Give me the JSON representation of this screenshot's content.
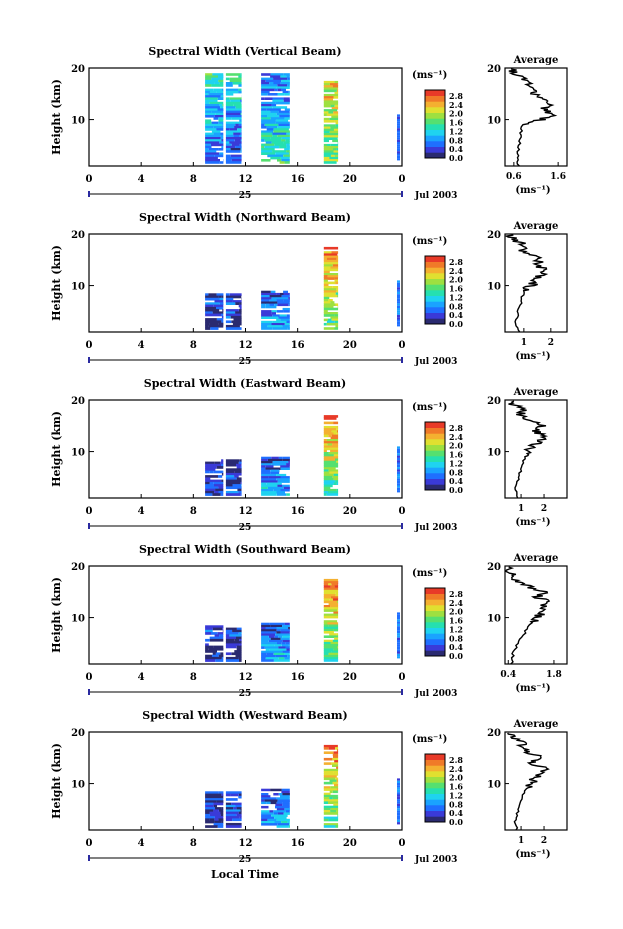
{
  "figure": {
    "xlabel": "Local Time",
    "ylabel": "Height (km)",
    "x_ticks": [
      "0",
      "4",
      "8",
      "12",
      "16",
      "20",
      "0"
    ],
    "day_label": "25",
    "date_label": "Jul 2003",
    "y_ticks": [
      "20",
      "10"
    ],
    "colorbar_unit": "(ms⁻¹)",
    "colorbar_ticks": [
      "2.8",
      "2.4",
      "2.0",
      "1.6",
      "1.2",
      "0.8",
      "0.4",
      "0.0"
    ],
    "average_title": "Average",
    "average_xlabel": "(ms⁻¹)",
    "colors": {
      "colormap": [
        "#2a2a70",
        "#3a3ad8",
        "#1f6fff",
        "#1aa3ff",
        "#1fd3f0",
        "#25e0b0",
        "#55e070",
        "#9ee040",
        "#e0e030",
        "#f4b030",
        "#f07a28",
        "#e83a28"
      ]
    }
  },
  "chart_data": [
    {
      "type": "heatmap",
      "title": "Spectral Width (Vertical Beam)",
      "xlabel": "Local Time",
      "ylabel": "Height (km)",
      "xlim": [
        0,
        24
      ],
      "ylim": [
        1,
        20
      ],
      "colorbar_range": [
        0.0,
        3.0
      ],
      "data_blocks": [
        {
          "x": [
            8.9,
            10.3
          ],
          "y": [
            1.5,
            19.0
          ],
          "value_low_alt": 0.4,
          "value_high_alt": 1.4
        },
        {
          "x": [
            10.5,
            11.7
          ],
          "y": [
            1.5,
            19.0
          ],
          "value_low_alt": 0.3,
          "value_high_alt": 1.4
        },
        {
          "x": [
            13.2,
            15.4
          ],
          "y": [
            1.5,
            19.0
          ],
          "value_low_alt": 1.4,
          "value_high_alt": 0.6
        },
        {
          "x": [
            18.0,
            19.1
          ],
          "y": [
            1.5,
            17.5
          ],
          "value_low_alt": 1.6,
          "value_high_alt": 2.2
        }
      ],
      "average_profile": {
        "x_ticks": [
          "0.6",
          "1.6"
        ],
        "xlim": [
          0.4,
          1.8
        ],
        "height": [
          1,
          3,
          5,
          7,
          9,
          10,
          11,
          12,
          13,
          14,
          15,
          16,
          17,
          18,
          19,
          20
        ],
        "value": [
          0.7,
          0.68,
          0.72,
          0.75,
          0.8,
          1.2,
          1.5,
          1.3,
          1.4,
          1.2,
          1.1,
          1.0,
          0.9,
          0.8,
          0.6,
          0.5
        ]
      }
    },
    {
      "type": "heatmap",
      "title": "Spectral Width (Northward Beam)",
      "xlabel": "Local Time",
      "ylabel": "Height (km)",
      "xlim": [
        0,
        24
      ],
      "ylim": [
        1,
        20
      ],
      "colorbar_range": [
        0.0,
        3.0
      ],
      "data_blocks": [
        {
          "x": [
            8.9,
            10.3
          ],
          "y": [
            1.5,
            8.5
          ],
          "value_low_alt": 0.3,
          "value_high_alt": 0.4
        },
        {
          "x": [
            10.5,
            11.7
          ],
          "y": [
            1.5,
            8.5
          ],
          "value_low_alt": 0.3,
          "value_high_alt": 0.4
        },
        {
          "x": [
            13.2,
            15.4
          ],
          "y": [
            1.5,
            9.0
          ],
          "value_low_alt": 1.0,
          "value_high_alt": 0.4
        },
        {
          "x": [
            18.0,
            19.1
          ],
          "y": [
            1.5,
            17.5
          ],
          "value_low_alt": 1.4,
          "value_high_alt": 2.6
        }
      ],
      "average_profile": {
        "x_ticks": [
          "1",
          "2"
        ],
        "xlim": [
          0.3,
          2.6
        ],
        "height": [
          1,
          3,
          5,
          7,
          9,
          10,
          11,
          12,
          13,
          14,
          15,
          16,
          17,
          18,
          19,
          20
        ],
        "value": [
          0.8,
          0.7,
          0.8,
          0.9,
          1.0,
          1.3,
          1.4,
          1.6,
          1.9,
          1.4,
          1.6,
          1.2,
          0.9,
          1.0,
          0.6,
          0.5
        ]
      }
    },
    {
      "type": "heatmap",
      "title": "Spectral Width (Eastward Beam)",
      "xlabel": "Local Time",
      "ylabel": "Height (km)",
      "xlim": [
        0,
        24
      ],
      "ylim": [
        1,
        20
      ],
      "colorbar_range": [
        0.0,
        3.0
      ],
      "data_blocks": [
        {
          "x": [
            8.9,
            10.3
          ],
          "y": [
            1.5,
            8.5
          ],
          "value_low_alt": 0.3,
          "value_high_alt": 0.4
        },
        {
          "x": [
            10.5,
            11.7
          ],
          "y": [
            1.5,
            8.5
          ],
          "value_low_alt": 0.3,
          "value_high_alt": 0.4
        },
        {
          "x": [
            13.2,
            15.4
          ],
          "y": [
            1.5,
            9.0
          ],
          "value_low_alt": 1.0,
          "value_high_alt": 0.4
        },
        {
          "x": [
            18.0,
            19.1
          ],
          "y": [
            1.5,
            17.5
          ],
          "value_low_alt": 1.4,
          "value_high_alt": 2.6
        }
      ],
      "average_profile": {
        "x_ticks": [
          "1",
          "2"
        ],
        "xlim": [
          0.3,
          3.0
        ],
        "height": [
          1,
          3,
          5,
          7,
          9,
          10,
          11,
          12,
          13,
          14,
          15,
          16,
          17,
          18,
          19,
          20
        ],
        "value": [
          0.8,
          0.75,
          0.9,
          1.0,
          1.2,
          1.3,
          1.5,
          1.8,
          2.2,
          1.5,
          2.0,
          1.4,
          1.0,
          1.1,
          0.7,
          0.6
        ]
      }
    },
    {
      "type": "heatmap",
      "title": "Spectral Width (Southward Beam)",
      "xlabel": "Local Time",
      "ylabel": "Height (km)",
      "xlim": [
        0,
        24
      ],
      "ylim": [
        1,
        20
      ],
      "colorbar_range": [
        0.0,
        3.0
      ],
      "data_blocks": [
        {
          "x": [
            8.9,
            10.3
          ],
          "y": [
            1.5,
            8.5
          ],
          "value_low_alt": 0.3,
          "value_high_alt": 0.4
        },
        {
          "x": [
            10.5,
            11.7
          ],
          "y": [
            1.5,
            8.5
          ],
          "value_low_alt": 0.3,
          "value_high_alt": 0.4
        },
        {
          "x": [
            13.2,
            15.4
          ],
          "y": [
            1.5,
            9.0
          ],
          "value_low_alt": 1.0,
          "value_high_alt": 0.4
        },
        {
          "x": [
            18.0,
            19.1
          ],
          "y": [
            1.5,
            17.5
          ],
          "value_low_alt": 1.4,
          "value_high_alt": 2.6
        }
      ],
      "average_profile": {
        "x_ticks": [
          "0.4",
          "1.8"
        ],
        "xlim": [
          0.3,
          2.2
        ],
        "height": [
          1,
          3,
          5,
          7,
          9,
          10,
          11,
          12,
          13,
          14,
          15,
          16,
          17,
          18,
          19,
          20
        ],
        "value": [
          0.5,
          0.55,
          0.7,
          0.9,
          1.1,
          1.3,
          1.4,
          1.5,
          1.6,
          1.3,
          1.5,
          1.0,
          0.7,
          0.6,
          0.4,
          0.35
        ]
      }
    },
    {
      "type": "heatmap",
      "title": "Spectral Width (Westward Beam)",
      "xlabel": "Local Time",
      "ylabel": "Height (km)",
      "xlim": [
        0,
        24
      ],
      "ylim": [
        1,
        20
      ],
      "colorbar_range": [
        0.0,
        3.0
      ],
      "data_blocks": [
        {
          "x": [
            8.9,
            10.3
          ],
          "y": [
            1.5,
            8.5
          ],
          "value_low_alt": 0.3,
          "value_high_alt": 0.4
        },
        {
          "x": [
            10.5,
            11.7
          ],
          "y": [
            1.5,
            8.5
          ],
          "value_low_alt": 0.3,
          "value_high_alt": 0.4
        },
        {
          "x": [
            13.2,
            15.4
          ],
          "y": [
            1.5,
            9.0
          ],
          "value_low_alt": 1.0,
          "value_high_alt": 0.4
        },
        {
          "x": [
            18.0,
            19.1
          ],
          "y": [
            1.5,
            17.5
          ],
          "value_low_alt": 1.4,
          "value_high_alt": 2.6
        }
      ],
      "average_profile": {
        "x_ticks": [
          "1",
          "2"
        ],
        "xlim": [
          0.3,
          3.0
        ],
        "height": [
          1,
          3,
          5,
          7,
          9,
          10,
          11,
          12,
          13,
          14,
          15,
          16,
          17,
          18,
          19,
          20
        ],
        "value": [
          0.8,
          0.75,
          0.9,
          1.0,
          1.2,
          1.4,
          1.6,
          1.8,
          2.0,
          1.5,
          1.9,
          1.3,
          1.0,
          1.1,
          0.7,
          0.6
        ]
      }
    }
  ]
}
